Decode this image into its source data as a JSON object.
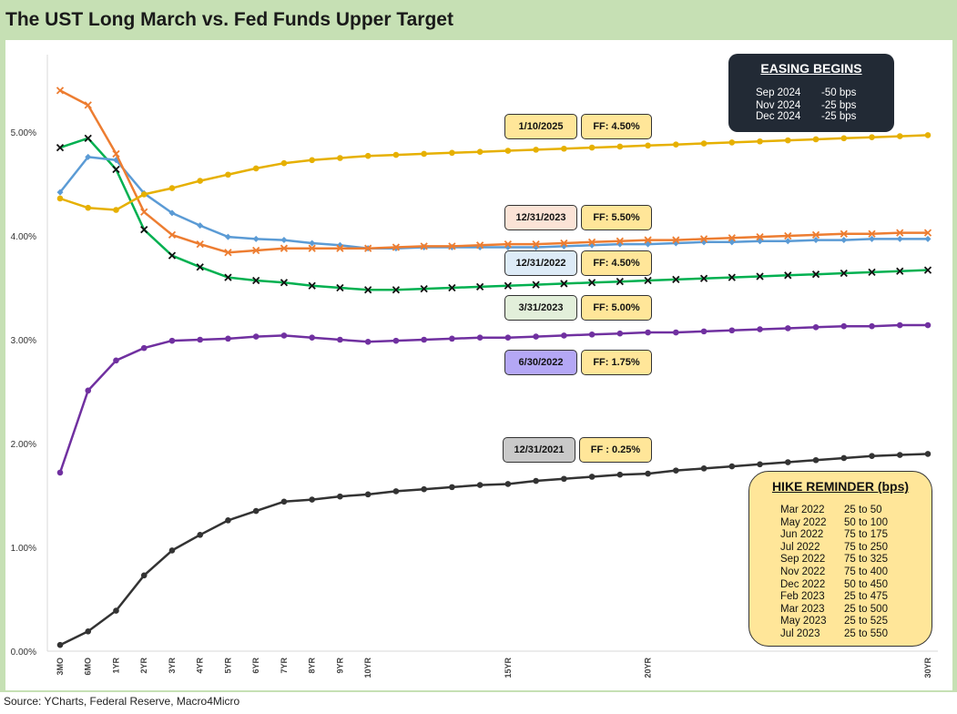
{
  "title": "The UST Long March vs. Fed Funds Upper Target",
  "source": "Source: YCharts, Federal Reserve, Macro4Micro",
  "easing": {
    "title": "EASING BEGINS",
    "rows": [
      {
        "date": "Sep 2024",
        "value": "-50 bps"
      },
      {
        "date": "Nov 2024",
        "value": "-25 bps"
      },
      {
        "date": "Dec 2024",
        "value": "-25 bps"
      }
    ]
  },
  "hike": {
    "title": "HIKE REMINDER (bps)",
    "rows": [
      {
        "date": "Mar 2022",
        "value": "25 to 50"
      },
      {
        "date": "May 2022",
        "value": "50 to 100"
      },
      {
        "date": "Jun 2022",
        "value": "75 to 175"
      },
      {
        "date": "Jul 2022",
        "value": "75 to 250"
      },
      {
        "date": "Sep 2022",
        "value": "75 to 325"
      },
      {
        "date": "Nov 2022",
        "value": "75 to 400"
      },
      {
        "date": "Dec 2022",
        "value": "50 to 450"
      },
      {
        "date": "Feb 2023",
        "value": "25 to 475"
      },
      {
        "date": "Mar 2023",
        "value": "25 to 500"
      },
      {
        "date": "May 2023",
        "value": "25 to 525"
      },
      {
        "date": "Jul 2023",
        "value": "25 to 550"
      }
    ]
  },
  "chart_data": {
    "type": "line",
    "title": "The UST Long March vs. Fed Funds Upper Target",
    "xlabel": "",
    "ylabel": "",
    "ylim": [
      0,
      5.0
    ],
    "grid": false,
    "y_ticks": [
      "0.00%",
      "1.00%",
      "2.00%",
      "3.00%",
      "4.00%",
      "5.00%"
    ],
    "x_tick_labels": [
      "3MO",
      "6MO",
      "1YR",
      "2YR",
      "3YR",
      "4YR",
      "5YR",
      "6YR",
      "7YR",
      "8YR",
      "9YR",
      "10YR",
      "15YR",
      "20YR",
      "30YR"
    ],
    "x": [
      "3MO",
      "6MO",
      "1YR",
      "2YR",
      "3YR",
      "4YR",
      "5YR",
      "6YR",
      "7YR",
      "8YR",
      "9YR",
      "10YR",
      "11YR",
      "12YR",
      "13YR",
      "14YR",
      "15YR",
      "16YR",
      "17YR",
      "18YR",
      "19YR",
      "20YR",
      "21YR",
      "22YR",
      "23YR",
      "24YR",
      "25YR",
      "26YR",
      "27YR",
      "28YR",
      "29YR",
      "30YR"
    ],
    "series": [
      {
        "date": "1/10/2025",
        "ff": "FF: 4.50%",
        "color": "#e6b000",
        "marker": "dot",
        "tag_color": "#ffe699",
        "values": [
          4.36,
          4.27,
          4.25,
          4.4,
          4.46,
          4.53,
          4.59,
          4.65,
          4.7,
          4.73,
          4.75,
          4.77,
          4.78,
          4.79,
          4.8,
          4.81,
          4.82,
          4.83,
          4.84,
          4.85,
          4.86,
          4.87,
          4.88,
          4.89,
          4.9,
          4.91,
          4.92,
          4.93,
          4.94,
          4.95,
          4.96,
          4.97
        ]
      },
      {
        "date": "12/31/2023",
        "ff": "FF: 5.50%",
        "color": "#ed7d31",
        "marker": "x",
        "tag_color": "#fbe3d6",
        "values": [
          5.4,
          5.26,
          4.79,
          4.23,
          4.01,
          3.92,
          3.84,
          3.86,
          3.88,
          3.88,
          3.88,
          3.88,
          3.89,
          3.9,
          3.9,
          3.91,
          3.92,
          3.92,
          3.93,
          3.94,
          3.95,
          3.96,
          3.96,
          3.97,
          3.98,
          3.99,
          4.0,
          4.01,
          4.02,
          4.02,
          4.03,
          4.03
        ]
      },
      {
        "date": "12/31/2022",
        "ff": "FF: 4.50%",
        "color": "#5b9bd5",
        "marker": "diamond",
        "tag_color": "#ddebf7",
        "values": [
          4.42,
          4.76,
          4.73,
          4.41,
          4.22,
          4.1,
          3.99,
          3.97,
          3.96,
          3.93,
          3.91,
          3.88,
          3.88,
          3.89,
          3.89,
          3.89,
          3.89,
          3.89,
          3.9,
          3.91,
          3.92,
          3.92,
          3.93,
          3.94,
          3.94,
          3.95,
          3.95,
          3.96,
          3.96,
          3.97,
          3.97,
          3.97
        ]
      },
      {
        "date": "3/31/2023",
        "ff": "FF: 5.00%",
        "color": "#00b050",
        "marker": "xblack",
        "tag_color": "#e2efda",
        "values": [
          4.85,
          4.94,
          4.64,
          4.06,
          3.81,
          3.7,
          3.6,
          3.57,
          3.55,
          3.52,
          3.5,
          3.48,
          3.48,
          3.49,
          3.5,
          3.51,
          3.52,
          3.53,
          3.54,
          3.55,
          3.56,
          3.57,
          3.58,
          3.59,
          3.6,
          3.61,
          3.62,
          3.63,
          3.64,
          3.65,
          3.66,
          3.67
        ]
      },
      {
        "date": "6/30/2022",
        "ff": "FF: 1.75%",
        "color": "#7030a0",
        "marker": "dot",
        "tag_color": "#b4a7f5",
        "values": [
          1.72,
          2.51,
          2.8,
          2.92,
          2.99,
          3.0,
          3.01,
          3.03,
          3.04,
          3.02,
          3.0,
          2.98,
          2.99,
          3.0,
          3.01,
          3.02,
          3.02,
          3.03,
          3.04,
          3.05,
          3.06,
          3.07,
          3.07,
          3.08,
          3.09,
          3.1,
          3.11,
          3.12,
          3.13,
          3.13,
          3.14,
          3.14
        ]
      },
      {
        "date": "12/31/2021",
        "ff": "FF : 0.25%",
        "color": "#333333",
        "marker": "dot",
        "tag_color": "#c9c9c9",
        "values": [
          0.06,
          0.19,
          0.39,
          0.73,
          0.97,
          1.12,
          1.26,
          1.35,
          1.44,
          1.46,
          1.49,
          1.51,
          1.54,
          1.56,
          1.58,
          1.6,
          1.61,
          1.64,
          1.66,
          1.68,
          1.7,
          1.71,
          1.74,
          1.76,
          1.78,
          1.8,
          1.82,
          1.84,
          1.86,
          1.88,
          1.89,
          1.9
        ]
      }
    ]
  }
}
